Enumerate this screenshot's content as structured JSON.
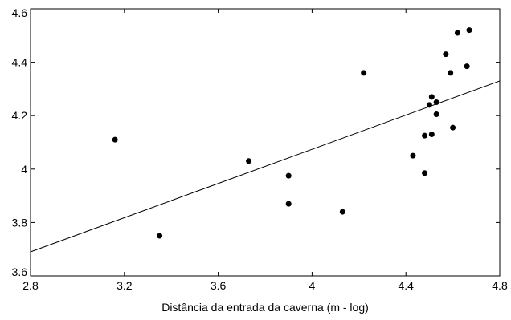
{
  "chart_data": {
    "type": "scatter",
    "title": "",
    "xlabel": "Distância da entrada da caverna (m - log)",
    "ylabel": "",
    "xlim": [
      2.8,
      4.8
    ],
    "ylim": [
      3.6,
      4.6
    ],
    "x_ticks": [
      "2.8",
      "3.2",
      "3.6",
      "4",
      "4.4",
      "4.8"
    ],
    "x_tick_values": [
      2.8,
      3.2,
      3.6,
      4.0,
      4.4,
      4.8
    ],
    "y_ticks": [
      "3.6",
      "3.8",
      "4",
      "4.2",
      "4.4",
      "4.6"
    ],
    "y_tick_values": [
      3.6,
      3.8,
      4.0,
      4.2,
      4.4,
      4.6
    ],
    "grid": false,
    "points": [
      {
        "x": 3.16,
        "y": 4.11
      },
      {
        "x": 3.35,
        "y": 3.75
      },
      {
        "x": 3.73,
        "y": 4.03
      },
      {
        "x": 3.9,
        "y": 3.975
      },
      {
        "x": 3.9,
        "y": 3.87
      },
      {
        "x": 4.13,
        "y": 3.84
      },
      {
        "x": 4.22,
        "y": 4.36
      },
      {
        "x": 4.43,
        "y": 4.05
      },
      {
        "x": 4.48,
        "y": 4.125
      },
      {
        "x": 4.48,
        "y": 3.985
      },
      {
        "x": 4.5,
        "y": 4.24
      },
      {
        "x": 4.51,
        "y": 4.27
      },
      {
        "x": 4.51,
        "y": 4.13
      },
      {
        "x": 4.53,
        "y": 4.25
      },
      {
        "x": 4.53,
        "y": 4.205
      },
      {
        "x": 4.57,
        "y": 4.43
      },
      {
        "x": 4.59,
        "y": 4.36
      },
      {
        "x": 4.6,
        "y": 4.155
      },
      {
        "x": 4.62,
        "y": 4.51
      },
      {
        "x": 4.66,
        "y": 4.385
      },
      {
        "x": 4.67,
        "y": 4.52
      }
    ],
    "trend_line": {
      "x": [
        2.8,
        4.8
      ],
      "y": [
        3.69,
        4.33
      ]
    },
    "colors": {
      "points": "#000000",
      "line": "#000000",
      "axes": "#000000"
    }
  }
}
